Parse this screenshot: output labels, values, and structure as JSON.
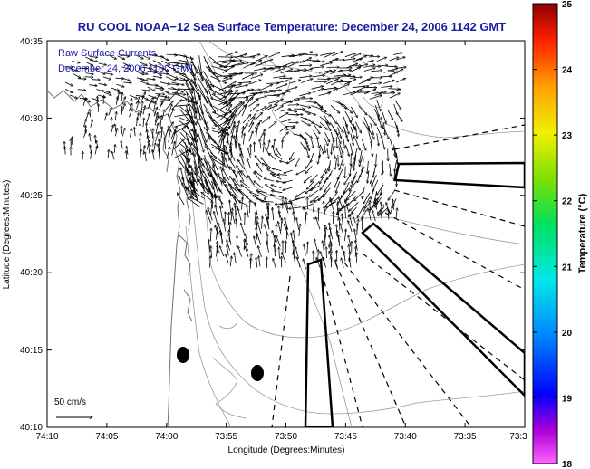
{
  "figure": {
    "title": "RU COOL  NOAA−12  Sea Surface Temperature:  December 24, 2006 1142 GMT",
    "overlay_line1": "Raw Surface Currents",
    "overlay_line2": "December 24, 2006 1100 GMT",
    "scale_label": "50 cm/s",
    "xlabel": "Longitude (Degrees:Minutes)",
    "ylabel": "Latitude (Degrees:Minutes)",
    "x_ticks": [
      "74:10",
      "74:05",
      "74:00",
      "73:55",
      "73:50",
      "73:45",
      "73:40",
      "73:35",
      "73:3"
    ],
    "y_ticks": [
      "40:35",
      "40:30",
      "40:25",
      "40:20",
      "40:15",
      "40:10"
    ],
    "colorbar": {
      "label": "Temperature (°C)",
      "ticks": [
        "25",
        "24",
        "23",
        "22",
        "21",
        "20",
        "19",
        "18"
      ],
      "range": [
        18,
        25
      ]
    },
    "colors": {
      "title": "#1a1aa8",
      "contour": "#9a9a9a",
      "coast": "#707070"
    }
  }
}
